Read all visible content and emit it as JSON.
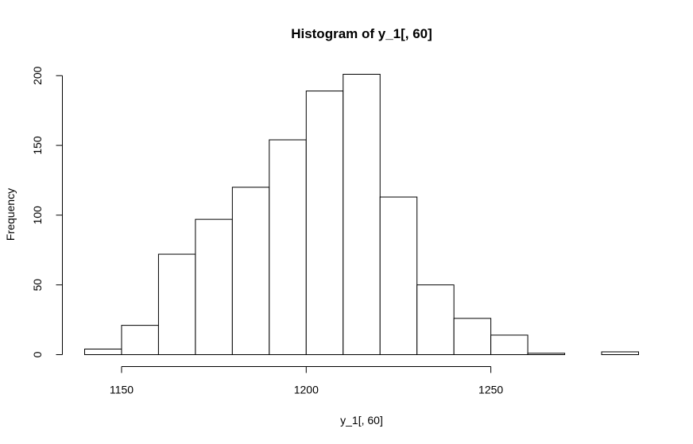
{
  "chart_data": {
    "type": "bar",
    "title": "Histogram of y_1[, 60]",
    "xlabel": "y_1[, 60]",
    "ylabel": "Frequency",
    "bins": [
      {
        "start": 1140,
        "end": 1150,
        "count": 4
      },
      {
        "start": 1150,
        "end": 1160,
        "count": 21
      },
      {
        "start": 1160,
        "end": 1170,
        "count": 72
      },
      {
        "start": 1170,
        "end": 1180,
        "count": 97
      },
      {
        "start": 1180,
        "end": 1190,
        "count": 120
      },
      {
        "start": 1190,
        "end": 1200,
        "count": 154
      },
      {
        "start": 1200,
        "end": 1210,
        "count": 189
      },
      {
        "start": 1210,
        "end": 1220,
        "count": 201
      },
      {
        "start": 1220,
        "end": 1230,
        "count": 113
      },
      {
        "start": 1230,
        "end": 1240,
        "count": 50
      },
      {
        "start": 1240,
        "end": 1250,
        "count": 26
      },
      {
        "start": 1250,
        "end": 1260,
        "count": 14
      },
      {
        "start": 1260,
        "end": 1270,
        "count": 1
      },
      {
        "start": 1270,
        "end": 1280,
        "count": 0
      },
      {
        "start": 1280,
        "end": 1290,
        "count": 2
      }
    ],
    "xlim": [
      1140,
      1290
    ],
    "ylim": [
      0,
      201
    ],
    "x_ticks": [
      1150,
      1200,
      1250
    ],
    "y_ticks": [
      0,
      50,
      100,
      150,
      200
    ],
    "grid": false,
    "colors": {
      "bar_fill": "#ffffff",
      "bar_stroke": "#000000"
    }
  }
}
